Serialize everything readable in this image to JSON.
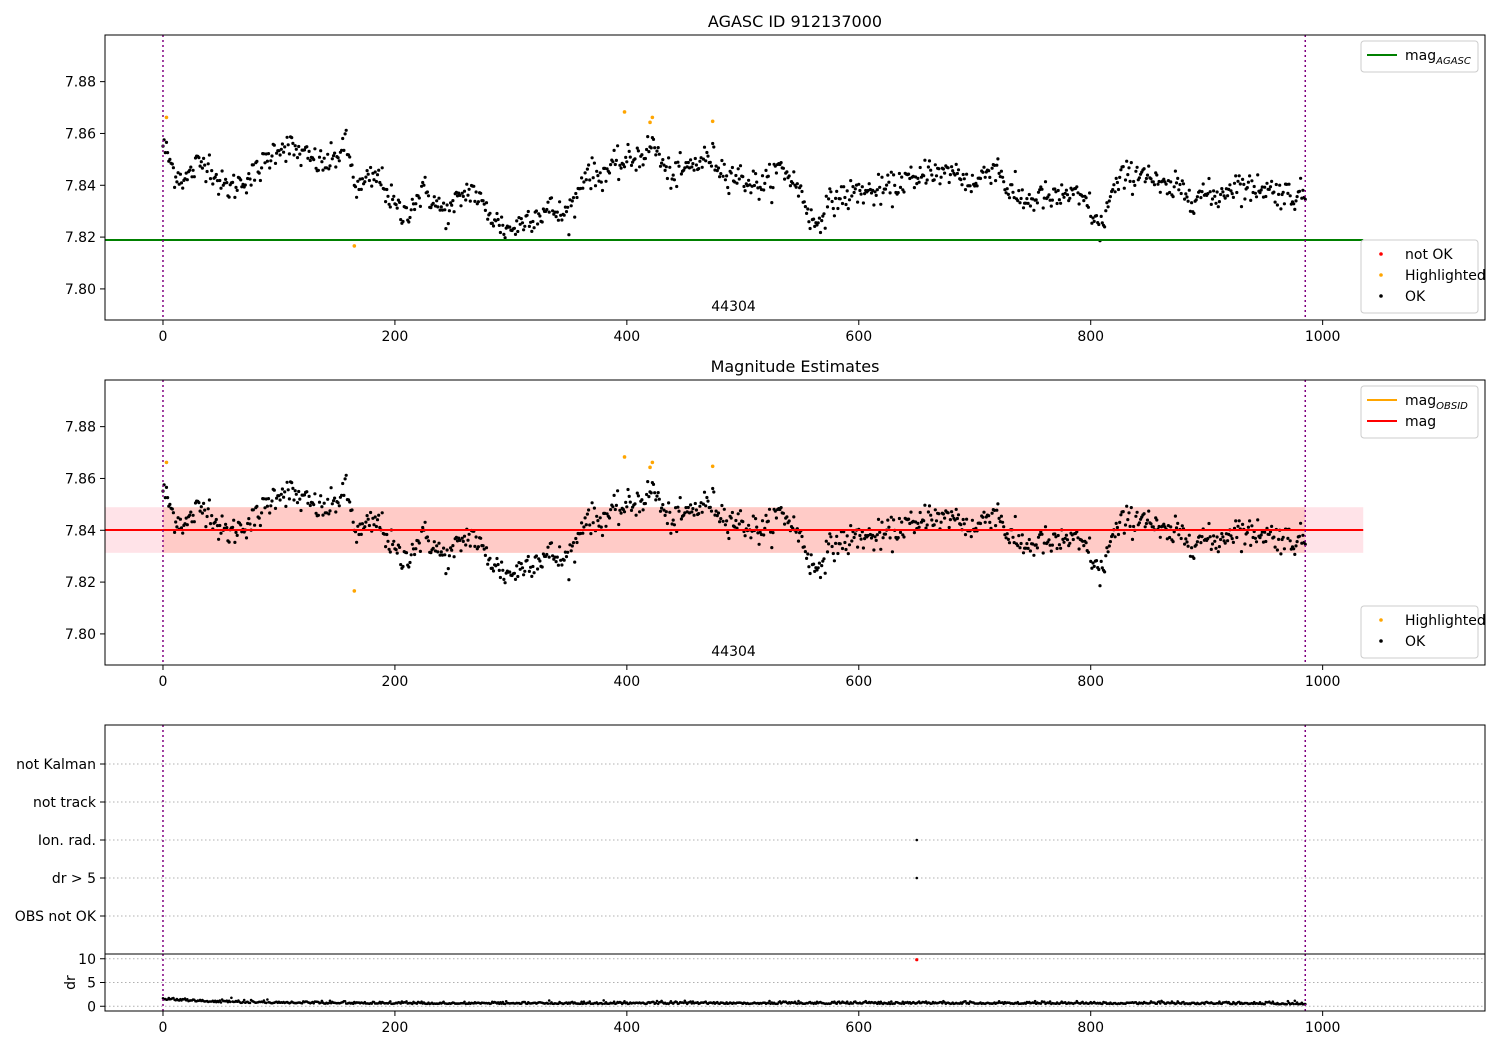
{
  "chart_data": [
    {
      "type": "scatter",
      "title": "AGASC ID 912137000",
      "xlim": [
        -50,
        1140
      ],
      "ylim": [
        7.788,
        7.898
      ],
      "x_ticks": [
        0,
        200,
        400,
        600,
        800,
        1000
      ],
      "y_ticks": [
        7.8,
        7.82,
        7.84,
        7.86,
        7.88
      ],
      "annotation": "44304",
      "obsid_boundaries": [
        0,
        985
      ],
      "series": [
        {
          "name": "mag_AGASC",
          "kind": "hline",
          "y": 7.8189,
          "x_range": [
            -50,
            1035
          ],
          "color": "#008000"
        },
        {
          "name": "not OK",
          "kind": "points",
          "color": "#ff0000",
          "x": [],
          "y": []
        },
        {
          "name": "Highlighted",
          "kind": "points",
          "color": "#ffa500",
          "x": [
            3,
            165,
            398,
            420,
            422,
            474
          ],
          "y": [
            7.8662,
            7.8166,
            7.8683,
            7.8643,
            7.8662,
            7.8647
          ]
        },
        {
          "name": "OK",
          "kind": "points",
          "color": "#000000",
          "x": [
            0,
            100,
            200,
            300,
            400,
            500,
            600,
            700,
            800,
            900,
            985
          ],
          "y": [
            7.856,
            7.852,
            7.834,
            7.83,
            7.845,
            7.846,
            7.838,
            7.845,
            7.834,
            7.837,
            7.836
          ],
          "fine_profile": [
            7.856,
            7.845,
            7.842,
            7.848,
            7.849,
            7.84,
            7.839,
            7.842,
            7.844,
            7.849,
            7.855,
            7.855,
            7.852,
            7.85,
            7.848,
            7.85,
            7.856,
            7.838,
            7.842,
            7.843,
            7.834,
            7.828,
            7.834,
            7.838,
            7.832,
            7.829,
            7.835,
            7.839,
            7.832,
            7.827,
            7.823,
            7.824,
            7.828,
            7.829,
            7.831,
            7.828,
            7.833,
            7.846,
            7.843,
            7.846,
            7.848,
            7.85,
            7.852,
            7.856,
            7.845,
            7.844,
            7.847,
            7.849,
            7.851,
            7.846,
            7.844,
            7.842,
            7.84,
            7.841,
            7.847,
            7.843,
            7.836,
            7.824,
            7.831,
            7.835,
            7.836,
            7.838,
            7.837,
            7.838,
            7.839,
            7.843,
            7.84,
            7.848,
            7.843,
            7.846,
            7.843,
            7.84,
            7.845,
            7.848,
            7.838,
            7.835,
            7.834,
            7.836,
            7.834,
            7.837,
            7.835,
            7.833,
            7.822,
            7.836,
            7.843,
            7.844,
            7.846,
            7.84,
            7.838,
            7.839,
            7.836,
            7.837,
            7.835,
            7.838,
            7.841,
            7.838,
            7.84,
            7.838,
            7.837,
            7.836,
            7.836
          ]
        }
      ],
      "legends": [
        {
          "position": "top-right",
          "entries": [
            {
              "label": "mag",
              "sub": "AGASC",
              "color": "#008000",
              "kind": "line"
            }
          ]
        },
        {
          "position": "bottom-right",
          "entries": [
            {
              "label": "not OK",
              "color": "#ff0000",
              "kind": "dot"
            },
            {
              "label": "Highlighted",
              "color": "#ffa500",
              "kind": "dot"
            },
            {
              "label": "OK",
              "color": "#000000",
              "kind": "dot"
            }
          ]
        }
      ]
    },
    {
      "type": "scatter",
      "title": "Magnitude Estimates",
      "xlim": [
        -50,
        1140
      ],
      "ylim": [
        7.788,
        7.898
      ],
      "x_ticks": [
        0,
        200,
        400,
        600,
        800,
        1000
      ],
      "y_ticks": [
        7.8,
        7.82,
        7.84,
        7.86,
        7.88
      ],
      "annotation": "44304",
      "obsid_boundaries": [
        0,
        985
      ],
      "series": [
        {
          "name": "mag_OBSID",
          "kind": "hline",
          "y": 7.8401,
          "x_range": [
            0,
            985
          ],
          "color": "#ffa500",
          "band": [
            7.8313,
            7.8489
          ],
          "band_color": "#ffa07a"
        },
        {
          "name": "mag",
          "kind": "hline",
          "y": 7.8401,
          "x_range": [
            -50,
            1035
          ],
          "color": "#ff0000",
          "band": [
            7.8313,
            7.8489
          ],
          "band_color": "#ffc0cb"
        },
        {
          "name": "Highlighted",
          "kind": "points",
          "color": "#ffa500",
          "x": [
            3,
            165,
            398,
            420,
            422,
            474
          ],
          "y": [
            7.8662,
            7.8166,
            7.8683,
            7.8643,
            7.8662,
            7.8647
          ]
        },
        {
          "name": "OK",
          "kind": "points",
          "color": "#000000",
          "same_as": "panel 1 OK series"
        }
      ],
      "legends": [
        {
          "position": "top-right",
          "entries": [
            {
              "label": "mag",
              "sub": "OBSID",
              "color": "#ffa500",
              "kind": "line"
            },
            {
              "label": "mag",
              "sub": "",
              "color": "#ff0000",
              "kind": "line"
            }
          ]
        },
        {
          "position": "bottom-right",
          "entries": [
            {
              "label": "Highlighted",
              "color": "#ffa500",
              "kind": "dot"
            },
            {
              "label": "OK",
              "color": "#000000",
              "kind": "dot"
            }
          ]
        }
      ]
    },
    {
      "type": "scatter",
      "title": "",
      "xlim": [
        -50,
        1140
      ],
      "categories": [
        "not Kalman",
        "not track",
        "Ion. rad.",
        "dr > 5",
        "OBS not OK"
      ],
      "flags": [
        {
          "category": "Ion. rad.",
          "x": [
            650
          ]
        },
        {
          "category": "dr > 5",
          "x": [
            650
          ]
        }
      ],
      "grid": true,
      "obsid_boundaries": [
        0,
        985
      ]
    },
    {
      "type": "scatter",
      "title": "",
      "ylabel": "dr",
      "xlim": [
        -50,
        1140
      ],
      "ylim": [
        -1,
        11
      ],
      "x_ticks": [
        0,
        200,
        400,
        600,
        800,
        1000
      ],
      "y_ticks": [
        0,
        5,
        10
      ],
      "obsid_boundaries": [
        0,
        985
      ],
      "series": [
        {
          "name": "dr",
          "kind": "points",
          "color": "#000000",
          "x": [
            0,
            10,
            50,
            100,
            200,
            400,
            600,
            800,
            985
          ],
          "y": [
            1.4,
            1.2,
            0.8,
            0.6,
            0.5,
            0.5,
            0.5,
            0.5,
            0.4
          ]
        },
        {
          "name": "dr outlier",
          "kind": "points",
          "color": "#ff0000",
          "x": [
            650
          ],
          "y": [
            9.8
          ]
        }
      ]
    }
  ]
}
